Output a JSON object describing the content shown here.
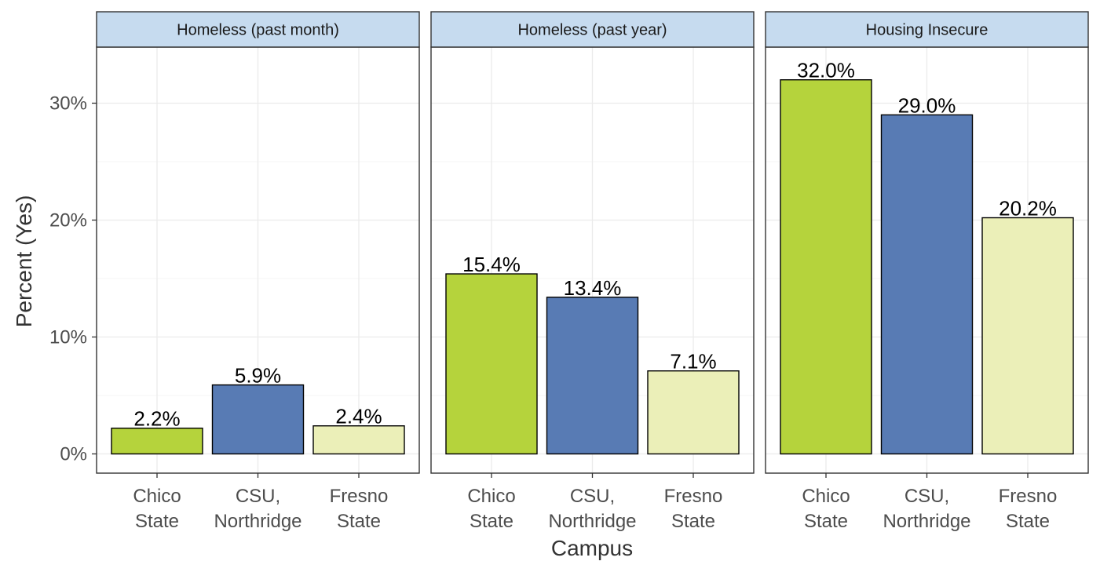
{
  "chart_data": {
    "type": "bar",
    "facet_by": "measure",
    "xlabel": "Campus",
    "ylabel": "Percent (Yes)",
    "ylim": [
      0,
      35
    ],
    "yticks": [
      0,
      10,
      20,
      30
    ],
    "ytick_labels": [
      "0%",
      "10%",
      "20%",
      "30%"
    ],
    "grid": true,
    "categories": [
      [
        "Chico",
        "State"
      ],
      [
        "CSU,",
        "Northridge"
      ],
      [
        "Fresno",
        "State"
      ]
    ],
    "category_colors": [
      "#b5d33c",
      "#587bb4",
      "#ebefb8"
    ],
    "panels": [
      {
        "name": "Homeless (past month)",
        "values": [
          2.2,
          5.9,
          2.4
        ],
        "labels": [
          "2.2%",
          "5.9%",
          "2.4%"
        ]
      },
      {
        "name": "Homeless (past year)",
        "values": [
          15.4,
          13.4,
          7.1
        ],
        "labels": [
          "15.4%",
          "13.4%",
          "7.1%"
        ]
      },
      {
        "name": "Housing Insecure",
        "values": [
          32.0,
          29.0,
          20.2
        ],
        "labels": [
          "32.0%",
          "29.0%",
          "20.2%"
        ]
      }
    ]
  },
  "colors": {
    "strip_fill": "#c6dbef",
    "panel_border": "#333333",
    "gridline": "#ebebeb"
  }
}
